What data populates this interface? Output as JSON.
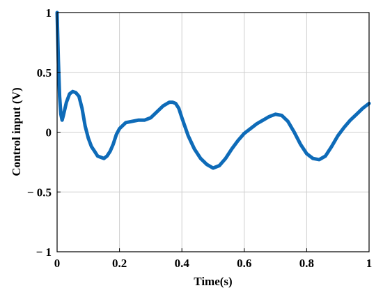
{
  "chart_data": {
    "type": "line",
    "title": "",
    "xlabel": "Time(s)",
    "ylabel": "Control input (V)",
    "xlim": [
      0,
      1
    ],
    "ylim": [
      -1,
      1
    ],
    "grid": true,
    "x_ticks": [
      0,
      0.2,
      0.4,
      0.6,
      0.8,
      1
    ],
    "x_tick_labels": [
      "0",
      "0.2",
      "0.4",
      "0.6",
      "0.8",
      "1"
    ],
    "y_ticks": [
      -1,
      -0.5,
      0,
      0.5,
      1
    ],
    "y_tick_labels": [
      "− 1",
      "− 0.5",
      "0",
      "0.5",
      "1"
    ],
    "line_color": "#0e6bb8",
    "series": [
      {
        "x": [
          0,
          0.004,
          0.008,
          0.012,
          0.016,
          0.02,
          0.03,
          0.04,
          0.05,
          0.06,
          0.07,
          0.08,
          0.09,
          0.1,
          0.11,
          0.12,
          0.13,
          0.14,
          0.15,
          0.16,
          0.17,
          0.18,
          0.19,
          0.2,
          0.22,
          0.24,
          0.26,
          0.28,
          0.3,
          0.32,
          0.34,
          0.36,
          0.37,
          0.38,
          0.39,
          0.4,
          0.42,
          0.44,
          0.46,
          0.48,
          0.5,
          0.52,
          0.54,
          0.56,
          0.58,
          0.6,
          0.62,
          0.64,
          0.66,
          0.68,
          0.7,
          0.72,
          0.74,
          0.76,
          0.78,
          0.8,
          0.82,
          0.84,
          0.86,
          0.88,
          0.9,
          0.92,
          0.94,
          0.96,
          0.98,
          1.0
        ],
        "y": [
          1.0,
          0.6,
          0.3,
          0.15,
          0.1,
          0.14,
          0.25,
          0.32,
          0.34,
          0.33,
          0.3,
          0.2,
          0.05,
          -0.05,
          -0.12,
          -0.16,
          -0.2,
          -0.21,
          -0.22,
          -0.2,
          -0.16,
          -0.1,
          -0.02,
          0.03,
          0.08,
          0.09,
          0.1,
          0.1,
          0.12,
          0.17,
          0.22,
          0.25,
          0.25,
          0.24,
          0.2,
          0.12,
          -0.03,
          -0.14,
          -0.22,
          -0.27,
          -0.3,
          -0.28,
          -0.22,
          -0.14,
          -0.07,
          -0.01,
          0.03,
          0.07,
          0.1,
          0.13,
          0.15,
          0.14,
          0.09,
          0.0,
          -0.1,
          -0.18,
          -0.22,
          -0.23,
          -0.2,
          -0.12,
          -0.03,
          0.04,
          0.1,
          0.15,
          0.2,
          0.24
        ]
      }
    ]
  }
}
